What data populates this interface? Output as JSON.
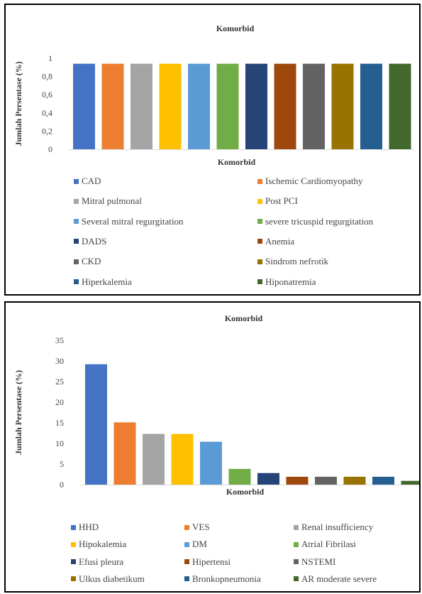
{
  "chart_data": [
    {
      "type": "bar",
      "title": "Komorbid",
      "xlabel": "Komorbid",
      "ylabel": "Jumlah Persentase (%)",
      "ylim": [
        0,
        1
      ],
      "yticks": [
        "0",
        "0,2",
        "0,4",
        "0,6",
        "0,8",
        "1"
      ],
      "grid": false,
      "legend_position": "bottom",
      "series": [
        {
          "name": "CAD",
          "value": 0.94,
          "color": "#4472C4"
        },
        {
          "name": "Ischemic Cardiomyopathy",
          "value": 0.94,
          "color": "#ED7D31"
        },
        {
          "name": "Mitral pulmonal",
          "value": 0.94,
          "color": "#A5A5A5"
        },
        {
          "name": "Post PCI",
          "value": 0.94,
          "color": "#FFC000"
        },
        {
          "name": "Several mitral regurgitation",
          "value": 0.94,
          "color": "#5B9BD5"
        },
        {
          "name": "severe tricuspid regurgitation",
          "value": 0.94,
          "color": "#70AD47"
        },
        {
          "name": "DADS",
          "value": 0.94,
          "color": "#264478"
        },
        {
          "name": "Anemia",
          "value": 0.94,
          "color": "#9E480E"
        },
        {
          "name": "CKD",
          "value": 0.94,
          "color": "#636363"
        },
        {
          "name": "Sindrom nefrotik",
          "value": 0.94,
          "color": "#997300"
        },
        {
          "name": "Hiperkalemia",
          "value": 0.94,
          "color": "#255E91"
        },
        {
          "name": "Hiponatremia",
          "value": 0.94,
          "color": "#43682B"
        }
      ]
    },
    {
      "type": "bar",
      "title": "Komorbid",
      "xlabel": "Komorbid",
      "ylabel": "Jumlah Persentase (%)",
      "ylim": [
        0,
        35
      ],
      "yticks": [
        "0",
        "5",
        "10",
        "15",
        "20",
        "25",
        "30",
        "35"
      ],
      "grid": false,
      "legend_position": "bottom",
      "series": [
        {
          "name": "HHD",
          "value": 29.2,
          "color": "#4472C4"
        },
        {
          "name": "VES",
          "value": 15.1,
          "color": "#ED7D31"
        },
        {
          "name": "Renal insufficiency",
          "value": 12.3,
          "color": "#A5A5A5"
        },
        {
          "name": "Hipokalemia",
          "value": 12.3,
          "color": "#FFC000"
        },
        {
          "name": "DM",
          "value": 10.4,
          "color": "#5B9BD5"
        },
        {
          "name": "Atrial Fibrilasi",
          "value": 3.8,
          "color": "#70AD47"
        },
        {
          "name": "Efusi pleura",
          "value": 2.8,
          "color": "#264478"
        },
        {
          "name": "Hipertensi",
          "value": 1.9,
          "color": "#9E480E"
        },
        {
          "name": "NSTEMI",
          "value": 1.9,
          "color": "#636363"
        },
        {
          "name": "Ulkus diabetikum",
          "value": 1.9,
          "color": "#997300"
        },
        {
          "name": "Bronkopneumonia",
          "value": 1.9,
          "color": "#255E91"
        },
        {
          "name": "AR moderate severe",
          "value": 0.9,
          "color": "#43682B"
        }
      ]
    }
  ]
}
